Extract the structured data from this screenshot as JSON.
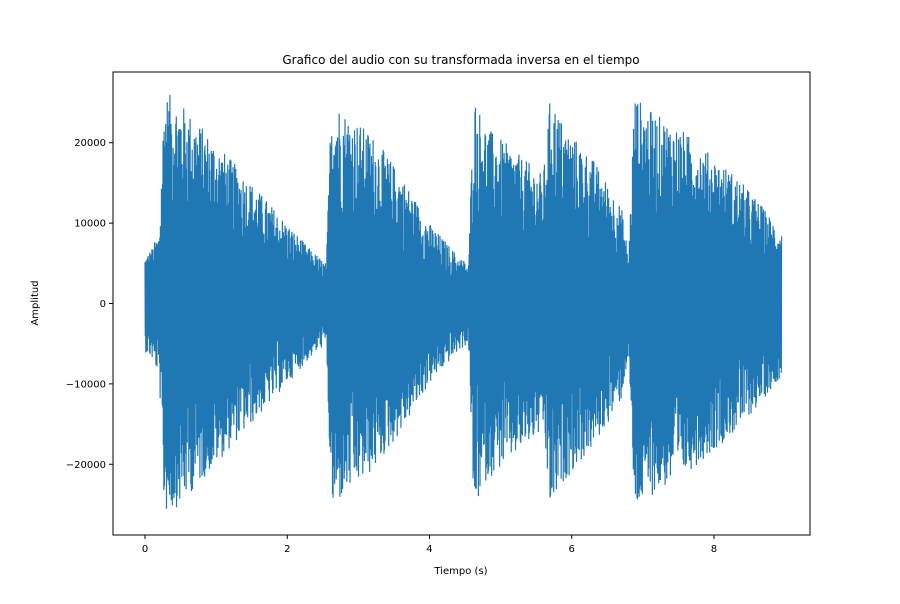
{
  "chart_data": {
    "type": "line",
    "title": "Grafico del audio con su transformada inversa en el tiempo",
    "xlabel": "Tiempo (s)",
    "ylabel": "Amplitud",
    "xlim": [
      -0.45,
      9.35
    ],
    "ylim": [
      -28800,
      28800
    ],
    "xticks": [
      0,
      2,
      4,
      6,
      8
    ],
    "xtick_labels": [
      "0",
      "2",
      "4",
      "6",
      "8"
    ],
    "yticks": [
      -20000,
      -10000,
      0,
      10000,
      20000
    ],
    "ytick_labels": [
      "−20000",
      "−10000",
      "0",
      "10000",
      "20000"
    ],
    "grid": false,
    "legend": "none",
    "line_color": "#1f77b4",
    "series": [
      {
        "x_range": [
          0,
          8.95
        ],
        "amplitude_envelope": {
          "t": [
            0,
            0.1,
            0.2,
            0.27,
            0.35,
            0.5,
            0.8,
            1.2,
            1.6,
            2.0,
            2.3,
            2.55,
            2.62,
            2.8,
            3.2,
            3.6,
            4.0,
            4.4,
            4.55,
            4.62,
            4.8,
            5.2,
            5.6,
            5.7,
            5.9,
            6.3,
            6.7,
            6.8,
            6.88,
            7.1,
            7.5,
            7.9,
            8.3,
            8.6,
            8.95
          ],
          "peak": [
            6000,
            7000,
            9000,
            26000,
            26000,
            25000,
            22000,
            18000,
            14000,
            10000,
            7000,
            5000,
            26000,
            24000,
            21000,
            16000,
            10000,
            6000,
            5000,
            26000,
            22000,
            19000,
            16000,
            26000,
            22000,
            18000,
            12000,
            6000,
            26000,
            24000,
            22000,
            19000,
            16000,
            13000,
            9000
          ]
        }
      }
    ]
  }
}
